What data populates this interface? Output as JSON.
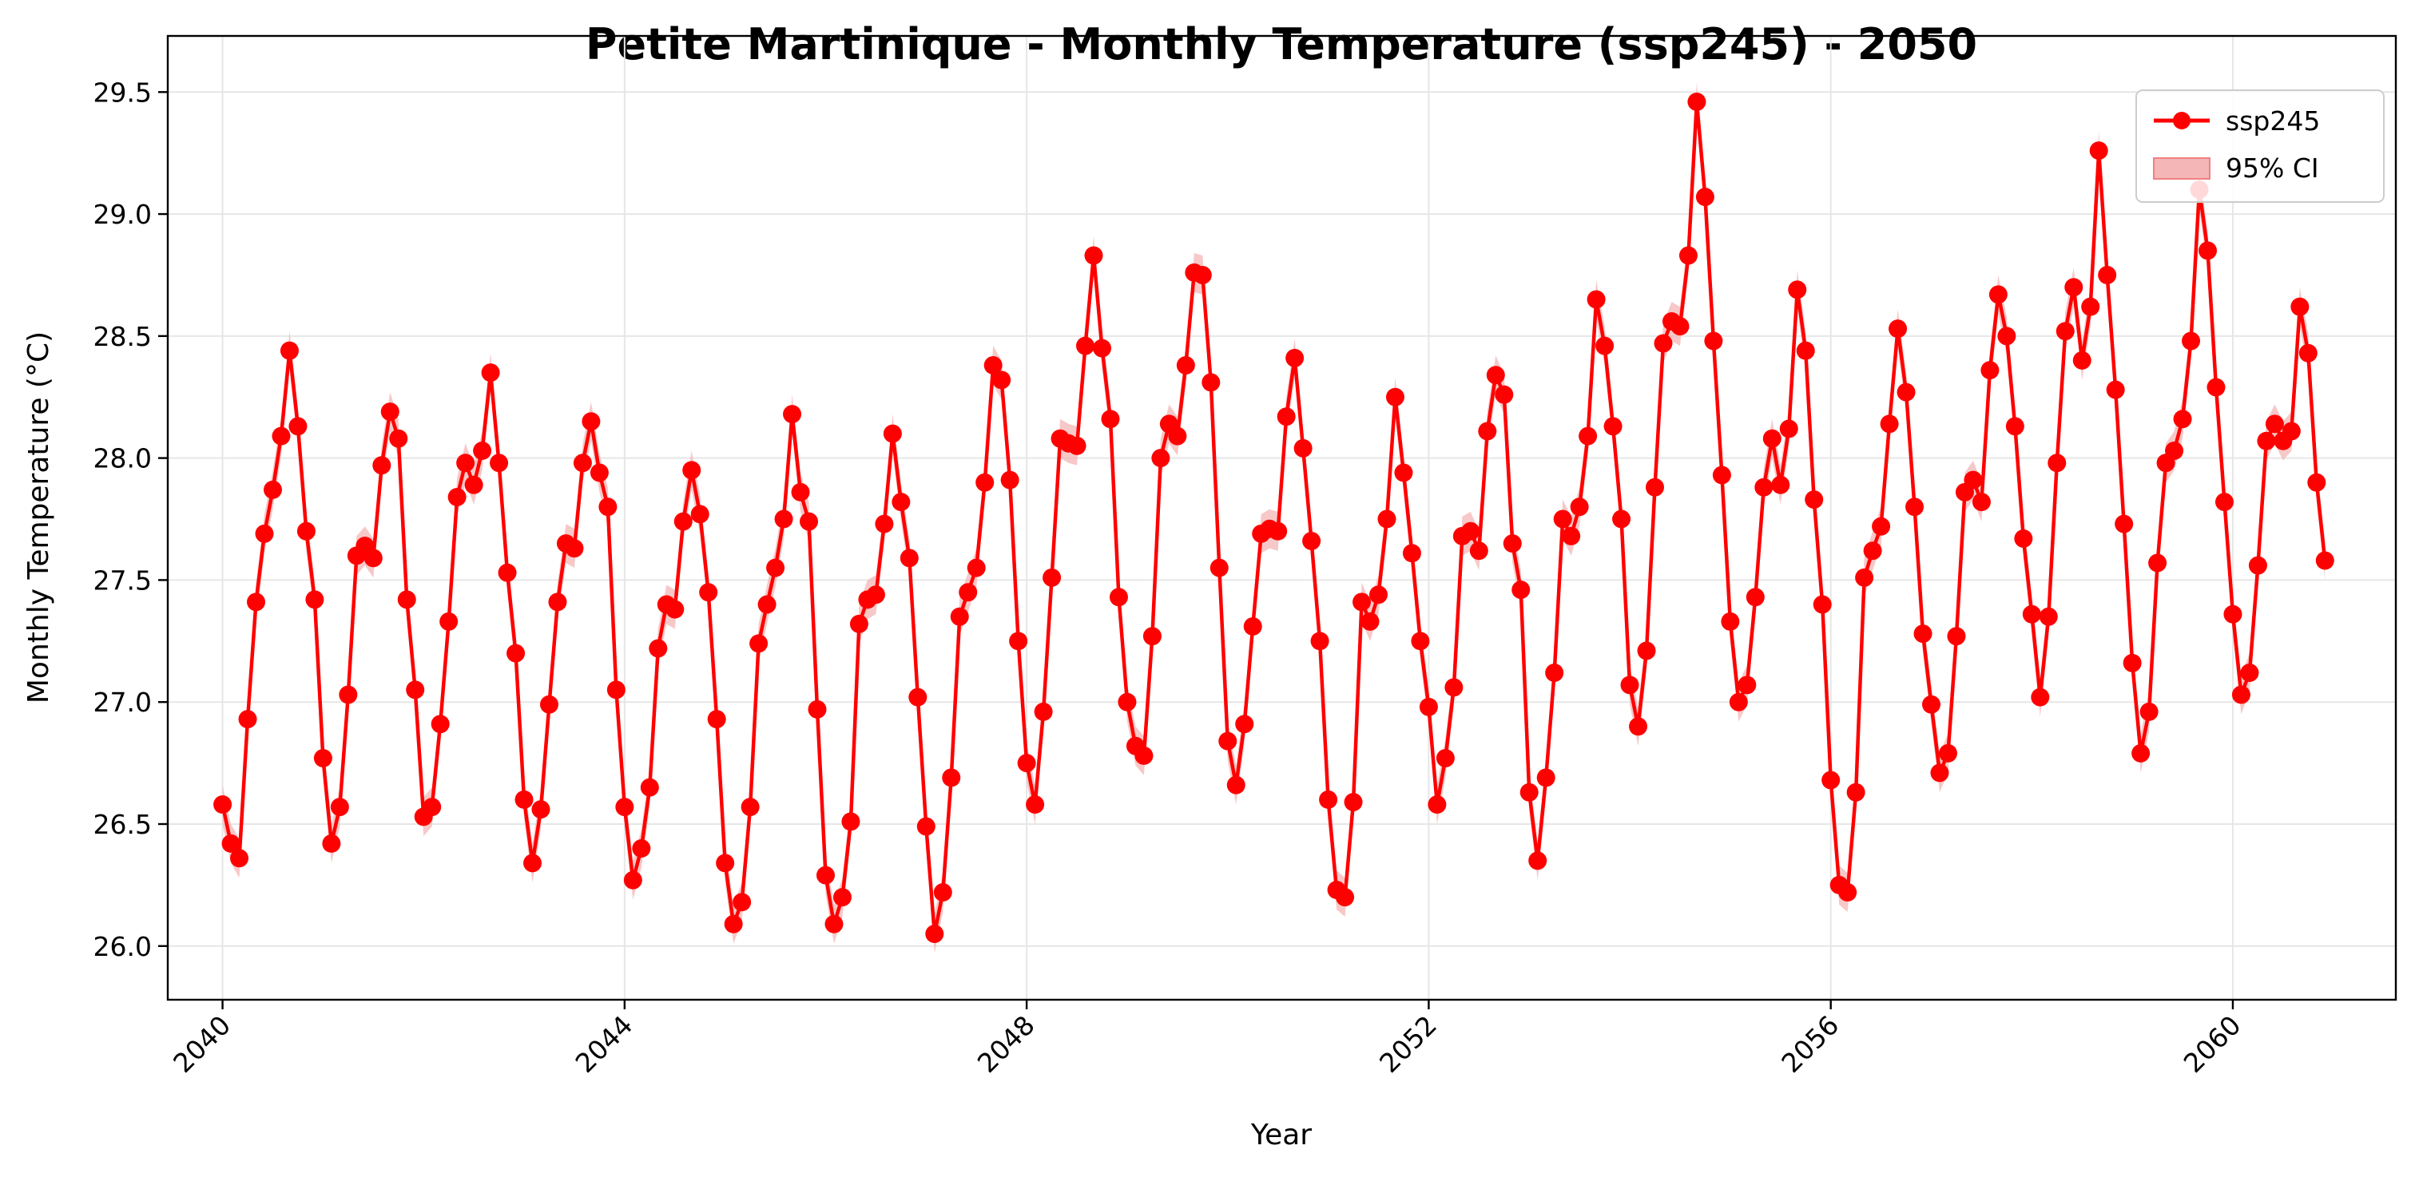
{
  "chart_data": {
    "type": "line",
    "title": "Petite Martinique - Monthly Temperature (ssp245) - 2050",
    "xlabel": "Year",
    "ylabel": "Monthly Temperature (°C)",
    "xlim": [
      "2039-06-15",
      "2061-08-15"
    ],
    "ylim": [
      25.78,
      29.73
    ],
    "x_ticks": [
      "2040",
      "2044",
      "2048",
      "2052",
      "2056",
      "2060"
    ],
    "y_ticks": [
      "26.0",
      "26.5",
      "27.0",
      "27.5",
      "28.0",
      "28.5",
      "29.0",
      "29.5"
    ],
    "grid": true,
    "legend_position": "top-right",
    "legend": [
      "ssp245",
      "95% CI"
    ],
    "colors": {
      "line": "#ff0000",
      "ci_fill": "#f4b6b6",
      "grid": "#e6e6e6",
      "axis": "#000000"
    },
    "ci_halfwidth": 0.08,
    "start_month": "2040-01",
    "series": [
      {
        "name": "ssp245",
        "values": [
          26.58,
          26.42,
          26.36,
          26.93,
          27.41,
          27.69,
          27.87,
          28.09,
          28.44,
          28.13,
          27.7,
          27.42,
          26.77,
          26.42,
          26.57,
          27.03,
          27.6,
          27.64,
          27.59,
          27.97,
          28.19,
          28.08,
          27.42,
          27.05,
          26.53,
          26.57,
          26.91,
          27.33,
          27.84,
          27.98,
          27.89,
          28.03,
          28.35,
          27.98,
          27.53,
          27.2,
          26.6,
          26.34,
          26.56,
          26.99,
          27.41,
          27.65,
          27.63,
          27.98,
          28.15,
          27.94,
          27.8,
          27.05,
          26.57,
          26.27,
          26.4,
          26.65,
          27.22,
          27.4,
          27.38,
          27.74,
          27.95,
          27.77,
          27.45,
          26.93,
          26.34,
          26.09,
          26.18,
          26.57,
          27.24,
          27.4,
          27.55,
          27.75,
          28.18,
          27.86,
          27.74,
          26.97,
          26.29,
          26.09,
          26.2,
          26.51,
          27.32,
          27.42,
          27.44,
          27.73,
          28.1,
          27.82,
          27.59,
          27.02,
          26.49,
          26.05,
          26.22,
          26.69,
          27.35,
          27.45,
          27.55,
          27.9,
          28.38,
          28.32,
          27.91,
          27.25,
          26.75,
          26.58,
          26.96,
          27.51,
          28.08,
          28.06,
          28.05,
          28.46,
          28.83,
          28.45,
          28.16,
          27.43,
          27.0,
          26.82,
          26.78,
          27.27,
          28.0,
          28.14,
          28.09,
          28.38,
          28.76,
          28.75,
          28.31,
          27.55,
          26.84,
          26.66,
          26.91,
          27.31,
          27.69,
          27.71,
          27.7,
          28.17,
          28.41,
          28.04,
          27.66,
          27.25,
          26.6,
          26.23,
          26.2,
          26.59,
          27.41,
          27.33,
          27.44,
          27.75,
          28.25,
          27.94,
          27.61,
          27.25,
          26.98,
          26.58,
          26.77,
          27.06,
          27.68,
          27.7,
          27.62,
          28.11,
          28.34,
          28.26,
          27.65,
          27.46,
          26.63,
          26.35,
          26.69,
          27.12,
          27.75,
          27.68,
          27.8,
          28.09,
          28.65,
          28.46,
          28.13,
          27.75,
          27.07,
          26.9,
          27.21,
          27.88,
          28.47,
          28.56,
          28.54,
          28.83,
          29.46,
          29.07,
          28.48,
          27.93,
          27.33,
          27.0,
          27.07,
          27.43,
          27.88,
          28.08,
          27.89,
          28.12,
          28.69,
          28.44,
          27.83,
          27.4,
          26.68,
          26.25,
          26.22,
          26.63,
          27.51,
          27.62,
          27.72,
          28.14,
          28.53,
          28.27,
          27.8,
          27.28,
          26.99,
          26.71,
          26.79,
          27.27,
          27.86,
          27.91,
          27.82,
          28.36,
          28.67,
          28.5,
          28.13,
          27.67,
          27.36,
          27.02,
          27.35,
          27.98,
          28.52,
          28.7,
          28.4,
          28.62,
          29.26,
          28.75,
          28.28,
          27.73,
          27.16,
          26.79,
          26.96,
          27.57,
          27.98,
          28.03,
          28.16,
          28.48,
          29.1,
          28.85,
          28.29,
          27.82,
          27.36,
          27.03,
          27.12,
          27.56,
          28.07,
          28.14,
          28.07,
          28.11,
          28.62,
          28.43,
          27.9,
          27.58
        ]
      }
    ]
  }
}
